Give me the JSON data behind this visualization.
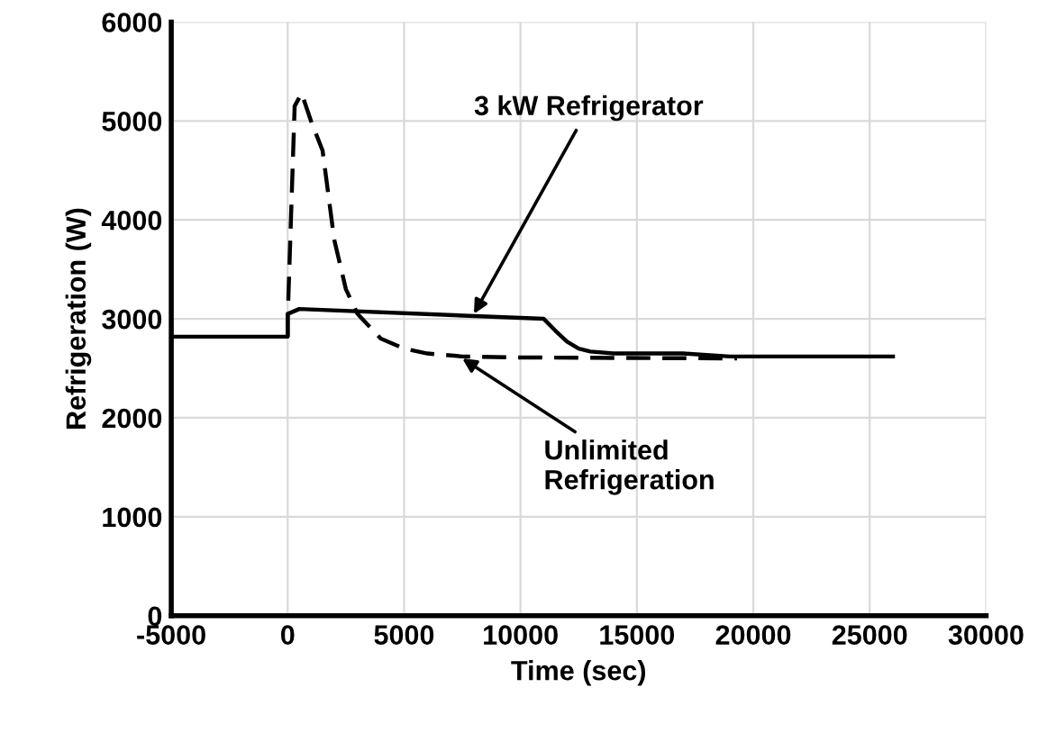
{
  "chart_data": {
    "type": "line",
    "xlabel": "Time (sec)",
    "ylabel": "Refrigeration (W)",
    "xlim": [
      -5000,
      30000
    ],
    "xticks": [
      -5000,
      0,
      5000,
      10000,
      15000,
      20000,
      25000,
      30000
    ],
    "ylim": [
      0,
      6000
    ],
    "yticks": [
      0,
      1000,
      2000,
      3000,
      4000,
      5000,
      6000
    ],
    "grid": true,
    "legend": false,
    "marker": "none",
    "series": [
      {
        "color": "#000000",
        "line_style": "solid",
        "x": [
          -5000,
          0,
          0,
          500,
          11000,
          11500,
          12000,
          12500,
          13000,
          14000,
          17000,
          19000,
          26000
        ],
        "values": [
          2820,
          2820,
          3050,
          3100,
          3000,
          2880,
          2770,
          2700,
          2670,
          2650,
          2650,
          2620,
          2620
        ]
      },
      {
        "color": "#000000",
        "line_style": "dashed",
        "x": [
          0,
          0,
          300,
          600,
          1000,
          1500,
          2000,
          2500,
          3000,
          4000,
          5000,
          6000,
          7500,
          10000,
          19300
        ],
        "values": [
          2820,
          3000,
          5150,
          5280,
          5000,
          4700,
          3800,
          3300,
          3050,
          2800,
          2700,
          2650,
          2620,
          2610,
          2600
        ]
      }
    ],
    "annotations": [
      {
        "text": "3 kW Refrigerator",
        "x": 8000,
        "y": 3050
      },
      {
        "text": "Unlimited\nRefrigeration",
        "x": 7500,
        "y": 2600
      }
    ]
  }
}
